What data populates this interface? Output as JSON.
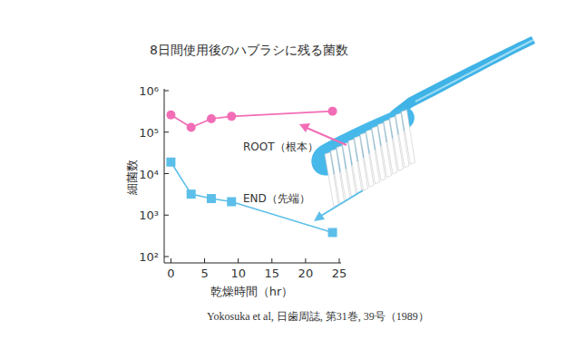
{
  "chart_data": {
    "type": "line",
    "title": "8日間使用後のハブラシに残る菌数",
    "x_label": "乾燥時間（hr）",
    "y_label": "細菌数",
    "x": [
      0,
      3,
      6,
      9,
      24
    ],
    "series": [
      {
        "name": "ROOT（根本）",
        "color": "#f26db6",
        "marker": "circle",
        "values": [
          260000,
          130000,
          210000,
          240000,
          320000
        ]
      },
      {
        "name": "END（先端）",
        "color": "#5cbfe9",
        "marker": "square",
        "values": [
          19000,
          3200,
          2500,
          2100,
          380
        ]
      }
    ],
    "xlim": [
      -1,
      25
    ],
    "xticks": [
      0,
      5,
      10,
      15,
      20,
      25
    ],
    "ylim": [
      100,
      1000000
    ],
    "yticks": [
      {
        "value": 100,
        "label": "10²"
      },
      {
        "value": 1000,
        "label": "10³"
      },
      {
        "value": 10000,
        "label": "10⁴"
      },
      {
        "value": 100000,
        "label": "10⁵"
      },
      {
        "value": 1000000,
        "label": "10⁶"
      }
    ],
    "log": "y",
    "grid": false,
    "source": "Yokosuka et al, 日歯周誌, 第31巻, 39号（1989）"
  }
}
